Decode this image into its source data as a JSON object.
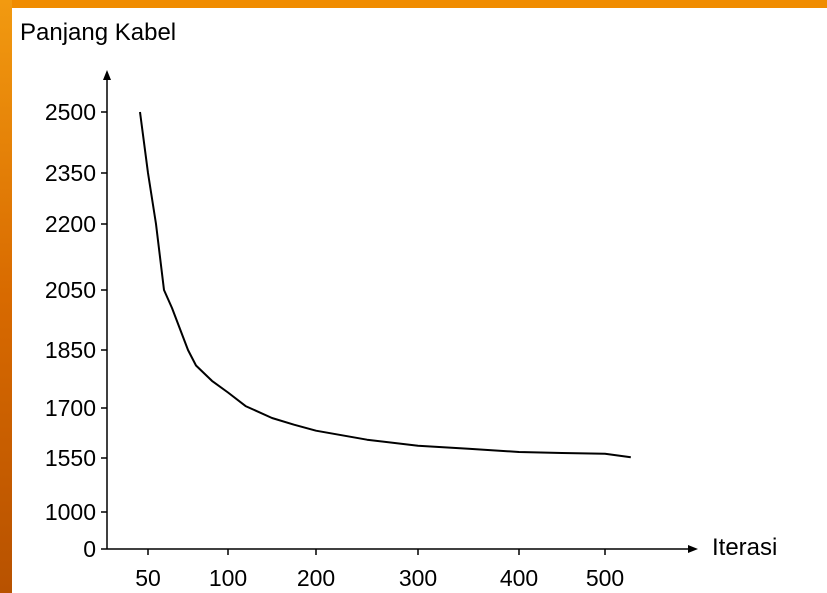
{
  "chart_data": {
    "type": "line",
    "ylabel": "Panjang Kabel",
    "xlabel": "Iterasi",
    "x_ticks": [
      "50",
      "100",
      "200",
      "300",
      "400",
      "500"
    ],
    "y_ticks": [
      "2500",
      "2350",
      "2200",
      "2050",
      "1850",
      "1700",
      "1550",
      "1000",
      "0"
    ],
    "grid": false,
    "series": [
      {
        "x": [
          45,
          50,
          55,
          60,
          65,
          70,
          75,
          80,
          90,
          100,
          120,
          150,
          175,
          200,
          250,
          300,
          350,
          400,
          450,
          500,
          530
        ],
        "y": [
          2500,
          2350,
          2200,
          2050,
          1990,
          1920,
          1850,
          1810,
          1770,
          1740,
          1705,
          1670,
          1650,
          1632,
          1605,
          1587,
          1578,
          1568,
          1565,
          1563,
          1552
        ]
      }
    ]
  }
}
